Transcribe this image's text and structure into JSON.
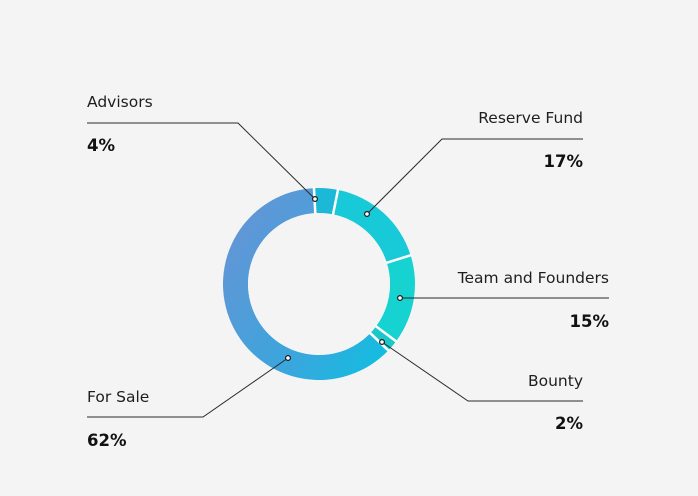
{
  "chart_data": {
    "type": "pie",
    "variant": "donut",
    "categories": [
      "For Sale",
      "Advisors",
      "Reserve Fund",
      "Team and Founders",
      "Bounty"
    ],
    "values": [
      62,
      4,
      17,
      15,
      2
    ],
    "value_labels": [
      "62%",
      "4%",
      "17%",
      "15%",
      "2%"
    ],
    "colors": {
      "for_sale": "#5b95d9",
      "advisors": "#1cb8d8",
      "reserve_fund": "#18c9d8",
      "team_and_founders": "#16d2d0",
      "bounty": "#1ac7cb",
      "separator": "#ffffff",
      "background": "#f4f4f4"
    }
  }
}
